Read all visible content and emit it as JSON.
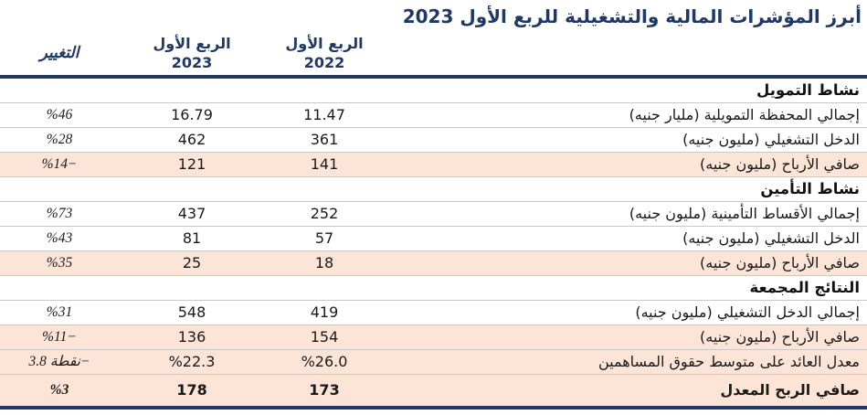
{
  "title": "أبرز المؤشرات المالية والتشغيلية للربع الأول 2023",
  "header": {
    "change_label": "التغيير",
    "q1_2023_line1": "الربع الأول",
    "q1_2023_line2": "2023",
    "q1_2022_line1": "الربع الأول",
    "q1_2022_line2": "2022"
  },
  "sections": [
    {
      "header": "نشاط التمويل",
      "rows": [
        {
          "label": "إجمالي المحفظة التمويلية (مليار جنيه)",
          "v2022": "11.47",
          "v2023": "16.79",
          "change": "%46"
        },
        {
          "label": "الدخل التشغيلي (مليون جنيه)",
          "v2022": "361",
          "v2023": "462",
          "change": "%28"
        },
        {
          "label": "صافي الأرباح (مليون جنيه)",
          "v2022": "141",
          "v2023": "121",
          "change": "%14−"
        }
      ]
    },
    {
      "header": "نشاط التأمين",
      "rows": [
        {
          "label": "إجمالي الأقساط التأمينية (مليون جنيه)",
          "v2022": "252",
          "v2023": "437",
          "change": "%73"
        },
        {
          "label": "الدخل التشغيلي (مليون جنيه)",
          "v2022": "57",
          "v2023": "81",
          "change": "%43"
        },
        {
          "label": "صافي الأرباح (مليون جنيه)",
          "v2022": "18",
          "v2023": "25",
          "change": "%35"
        }
      ]
    },
    {
      "header": "النتائج المجمعة",
      "rows": [
        {
          "label": "إجمالي الدخل التشغيلي (مليون جنيه)",
          "v2022": "419",
          "v2023": "548",
          "change": "%31"
        },
        {
          "label": "صافي الأرباح (مليون جنيه)",
          "v2022": "154",
          "v2023": "136",
          "change": "%11−"
        },
        {
          "label": "معدل العائد على متوسط حقوق المساهمين",
          "v2022": "%26.0",
          "v2023": "%22.3",
          "change": "نقطة 3.8−"
        },
        {
          "label": "صافي الربح المعدل",
          "v2022": "173",
          "v2023": "178",
          "change": "%3"
        }
      ]
    }
  ],
  "colors": {
    "navy": "#1F3864",
    "highlight": "#FCE4D6",
    "row_line": "#C8C8C8",
    "text": "#1A1A1A"
  }
}
